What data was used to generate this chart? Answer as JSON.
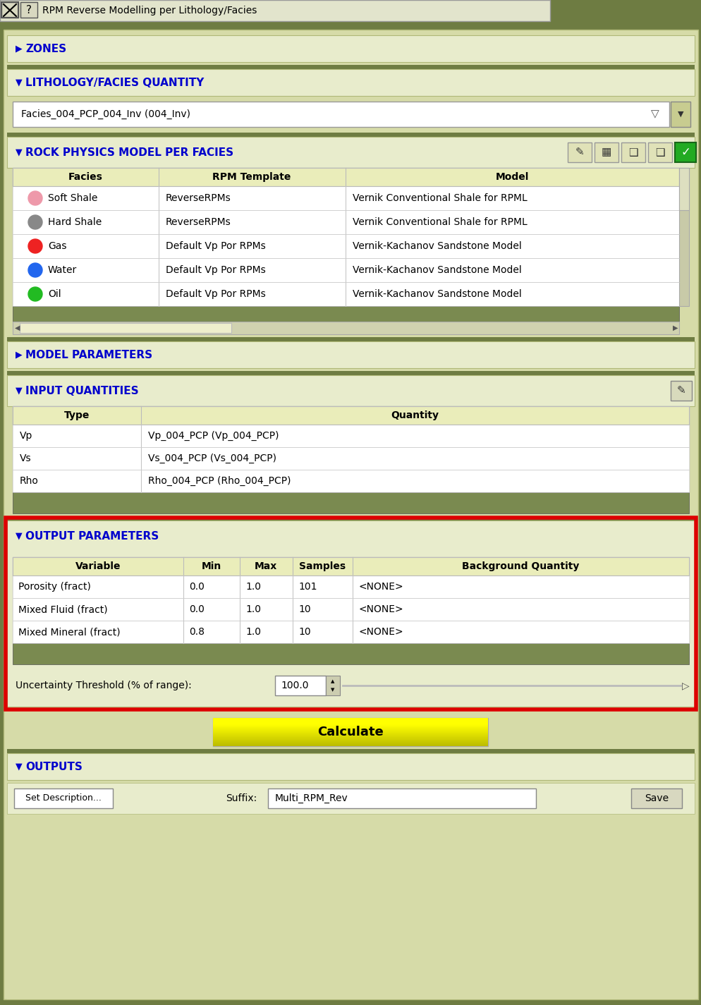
{
  "title_bar_text": "RPM Reverse Modelling per Lithology/Facies",
  "bg_outer": "#6e7c42",
  "bg_panel": "#d6dba8",
  "bg_section": "#e8eccc",
  "bg_white": "#ffffff",
  "bg_table_header": "#eaedba",
  "bg_dark_row": "#7a8a50",
  "border_color": "#b0b878",
  "blue_text": "#0000cc",
  "black_text": "#111111",
  "red_border": "#dd0000",
  "yellow_btn_top": "#ffff88",
  "yellow_btn_bot": "#dddd00",
  "zones_label": "ZONES",
  "lith_label": "LITHOLOGY/FACIES QUANTITY",
  "dropdown_text": "Facies_004_PCP_004_Inv (004_Inv)",
  "rpm_label": "ROCK PHYSICS MODEL PER FACIES",
  "table1_headers": [
    "Facies",
    "RPM Template",
    "Model"
  ],
  "table1_rows": [
    [
      "Soft Shale",
      "pink",
      "ReverseRPMs",
      "Vernik Conventional Shale for RPML"
    ],
    [
      "Hard Shale",
      "gray",
      "ReverseRPMs",
      "Vernik Conventional Shale for RPML"
    ],
    [
      "Gas",
      "red",
      "Default Vp Por RPMs",
      "Vernik-Kachanov Sandstone Model"
    ],
    [
      "Water",
      "blue",
      "Default Vp Por RPMs",
      "Vernik-Kachanov Sandstone Model"
    ],
    [
      "Oil",
      "green",
      "Default Vp Por RPMs",
      "Vernik-Kachanov Sandstone Model"
    ]
  ],
  "model_params_label": "MODEL PARAMETERS",
  "input_label": "INPUT QUANTITIES",
  "input_headers": [
    "Type",
    "Quantity"
  ],
  "input_rows": [
    [
      "Vp",
      "Vp_004_PCP (Vp_004_PCP)"
    ],
    [
      "Vs",
      "Vs_004_PCP (Vs_004_PCP)"
    ],
    [
      "Rho",
      "Rho_004_PCP (Rho_004_PCP)"
    ]
  ],
  "output_label": "OUTPUT PARAMETERS",
  "output_headers": [
    "Variable",
    "Min",
    "Max",
    "Samples",
    "Background Quantity"
  ],
  "output_rows": [
    [
      "Porosity (fract)",
      "0.0",
      "1.0",
      "101",
      "<NONE>"
    ],
    [
      "Mixed Fluid (fract)",
      "0.0",
      "1.0",
      "10",
      "<NONE>"
    ],
    [
      "Mixed Mineral (fract)",
      "0.8",
      "1.0",
      "10",
      "<NONE>"
    ]
  ],
  "uncertainty_label": "Uncertainty Threshold (% of range):",
  "uncertainty_value": "100.0",
  "calculate_label": "Calculate",
  "outputs_label": "OUTPUTS",
  "set_desc_label": "Set Description...",
  "suffix_label": "Suffix:",
  "suffix_value": "Multi_RPM_Rev",
  "save_label": "Save"
}
